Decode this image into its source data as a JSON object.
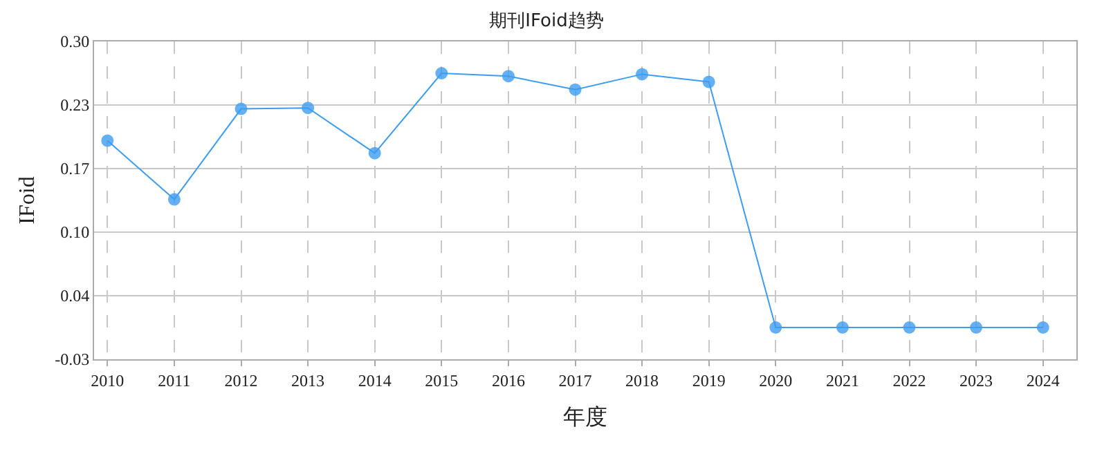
{
  "chart_data": {
    "type": "line",
    "title": "期刊IFoid趋势",
    "xlabel": "年度",
    "ylabel": "IFoid",
    "categories": [
      "2010",
      "2011",
      "2012",
      "2013",
      "2014",
      "2015",
      "2016",
      "2017",
      "2018",
      "2019",
      "2020",
      "2021",
      "2022",
      "2023",
      "2024"
    ],
    "series": [
      {
        "color": "#3d9cf0",
        "values": [
          0.197,
          0.136,
          0.23,
          0.231,
          0.184,
          0.267,
          0.264,
          0.25,
          0.266,
          0.258,
          0.003,
          0.003,
          0.003,
          0.003,
          0.003
        ]
      }
    ],
    "ylim": [
      -0.03,
      0.3
    ],
    "yticks": [
      {
        "value": -0.03,
        "label": "-0.03"
      },
      {
        "value": 0.036,
        "label": "0.04"
      },
      {
        "value": 0.102,
        "label": "0.10"
      },
      {
        "value": 0.168,
        "label": "0.17"
      },
      {
        "value": 0.234,
        "label": "0.23"
      },
      {
        "value": 0.3,
        "label": "0.30"
      }
    ],
    "grid": true,
    "marker": "circle",
    "line_style": "solid"
  }
}
